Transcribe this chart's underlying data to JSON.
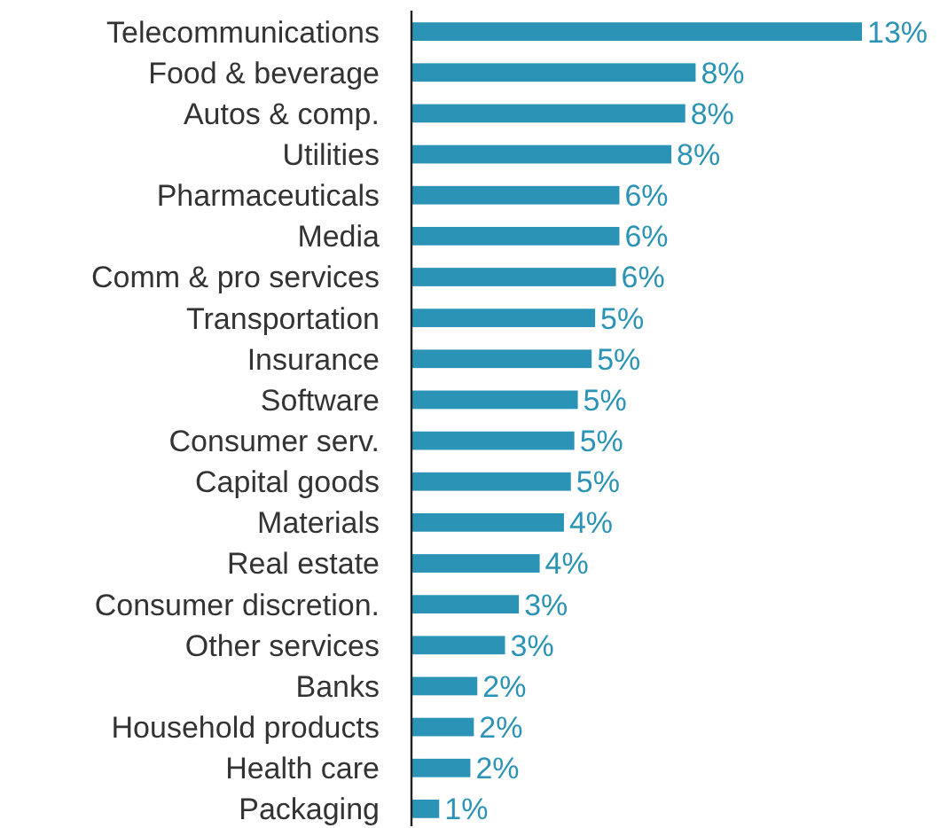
{
  "chart_data": {
    "type": "bar",
    "orientation": "horizontal",
    "categories": [
      "Telecommunications",
      "Food & beverage",
      "Autos & comp.",
      "Utilities",
      "Pharmaceuticals",
      "Media",
      "Comm & pro services",
      "Transportation",
      "Insurance",
      "Software",
      "Consumer serv.",
      "Capital goods",
      "Materials",
      "Real estate",
      "Consumer discretion.",
      "Other services",
      "Banks",
      "Household products",
      "Health care",
      "Packaging"
    ],
    "values": [
      13.0,
      8.2,
      7.9,
      7.5,
      6.0,
      6.0,
      5.9,
      5.3,
      5.2,
      4.8,
      4.7,
      4.6,
      4.4,
      3.7,
      3.1,
      2.7,
      1.9,
      1.8,
      1.7,
      0.8
    ],
    "value_labels": [
      "13%",
      "8%",
      "8%",
      "8%",
      "6%",
      "6%",
      "6%",
      "5%",
      "5%",
      "5%",
      "5%",
      "5%",
      "4%",
      "4%",
      "3%",
      "3%",
      "2%",
      "2%",
      "2%",
      "1%"
    ],
    "color": "#2b93b5"
  }
}
